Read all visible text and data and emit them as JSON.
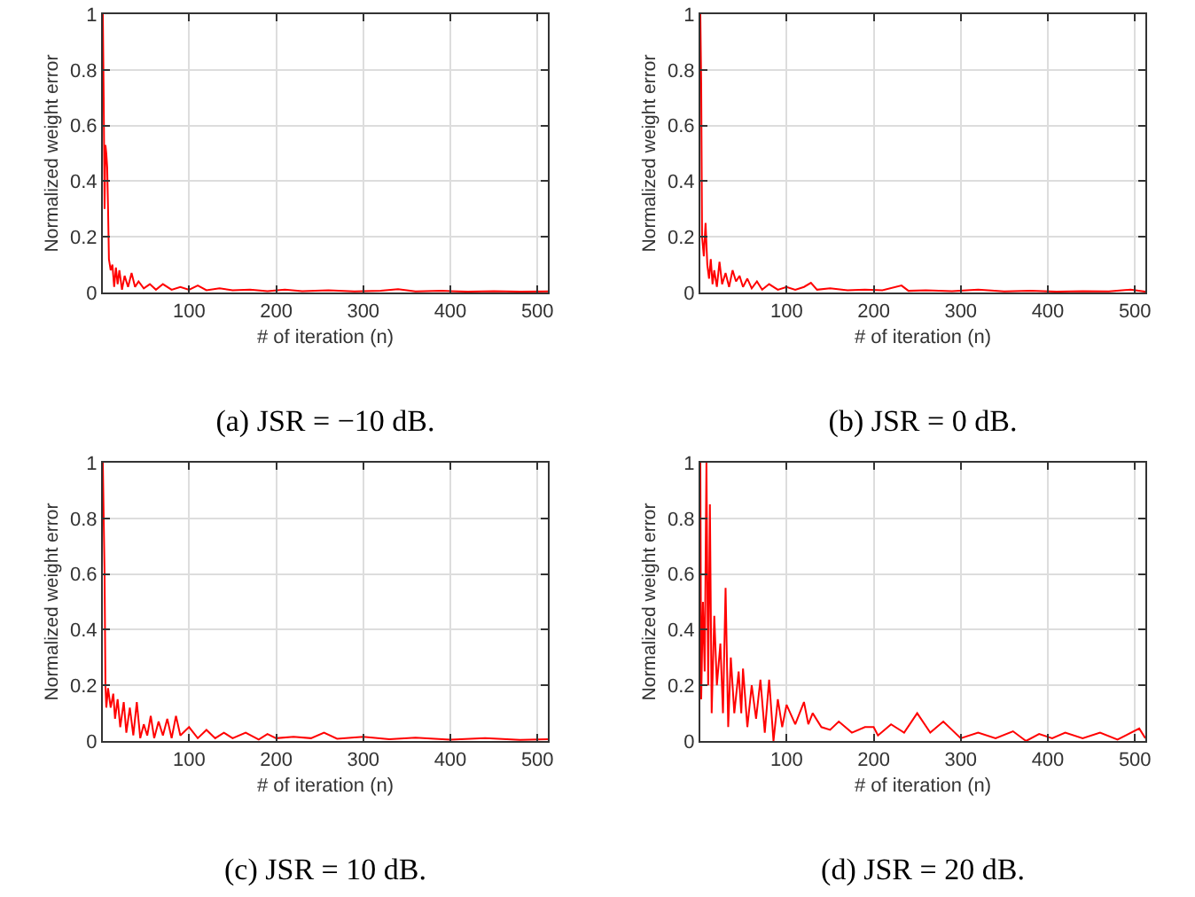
{
  "chart_data": [
    {
      "type": "line",
      "title": "(a) JSR = −10 dB.",
      "xlabel": "# of iteration (n)",
      "ylabel": "Normalized weight error",
      "color": "#ff0000",
      "xlim": [
        1,
        512
      ],
      "ylim": [
        0,
        1
      ],
      "xticks": [
        100,
        200,
        300,
        400,
        500
      ],
      "yticks": [
        0,
        0.2,
        0.4,
        0.6,
        0.8,
        1
      ],
      "grid": true,
      "x": [
        1,
        2,
        3,
        4,
        5,
        6,
        7,
        8,
        10,
        12,
        14,
        16,
        18,
        20,
        23,
        26,
        30,
        34,
        38,
        42,
        48,
        55,
        62,
        70,
        80,
        90,
        100,
        110,
        120,
        135,
        150,
        170,
        190,
        210,
        230,
        260,
        290,
        320,
        340,
        360,
        390,
        420,
        450,
        480,
        512
      ],
      "values": [
        1,
        0.7,
        0.3,
        0.53,
        0.5,
        0.45,
        0.3,
        0.12,
        0.08,
        0.1,
        0.02,
        0.09,
        0.03,
        0.08,
        0.01,
        0.06,
        0.02,
        0.07,
        0.02,
        0.04,
        0.015,
        0.03,
        0.01,
        0.03,
        0.01,
        0.02,
        0.01,
        0.025,
        0.008,
        0.015,
        0.008,
        0.01,
        0.005,
        0.01,
        0.005,
        0.008,
        0.004,
        0.006,
        0.012,
        0.004,
        0.006,
        0.003,
        0.005,
        0.003,
        0.004
      ]
    },
    {
      "type": "line",
      "title": "(b) JSR = 0 dB.",
      "xlabel": "# of iteration (n)",
      "ylabel": "Normalized weight error",
      "color": "#ff0000",
      "xlim": [
        1,
        512
      ],
      "ylim": [
        0,
        1
      ],
      "xticks": [
        100,
        200,
        300,
        400,
        500
      ],
      "yticks": [
        0,
        0.2,
        0.4,
        0.6,
        0.8,
        1
      ],
      "grid": true,
      "x": [
        1,
        2,
        3,
        5,
        7,
        9,
        11,
        13,
        15,
        17,
        20,
        23,
        26,
        30,
        34,
        38,
        42,
        46,
        50,
        55,
        60,
        66,
        72,
        80,
        90,
        100,
        110,
        120,
        128,
        135,
        150,
        170,
        190,
        210,
        232,
        240,
        260,
        290,
        320,
        350,
        380,
        410,
        440,
        470,
        495,
        512
      ],
      "values": [
        1,
        0.75,
        0.2,
        0.13,
        0.25,
        0.1,
        0.05,
        0.12,
        0.03,
        0.08,
        0.02,
        0.11,
        0.03,
        0.07,
        0.02,
        0.08,
        0.04,
        0.06,
        0.02,
        0.05,
        0.015,
        0.04,
        0.01,
        0.03,
        0.01,
        0.02,
        0.01,
        0.02,
        0.035,
        0.01,
        0.015,
        0.008,
        0.01,
        0.008,
        0.025,
        0.006,
        0.008,
        0.005,
        0.01,
        0.004,
        0.006,
        0.003,
        0.005,
        0.004,
        0.01,
        0.003
      ]
    },
    {
      "type": "line",
      "title": "(c) JSR = 10 dB.",
      "xlabel": "# of iteration (n)",
      "ylabel": "Normalized weight error",
      "color": "#ff0000",
      "xlim": [
        1,
        512
      ],
      "ylim": [
        0,
        1
      ],
      "xticks": [
        100,
        200,
        300,
        400,
        500
      ],
      "yticks": [
        0,
        0.2,
        0.4,
        0.6,
        0.8,
        1
      ],
      "grid": true,
      "x": [
        1,
        2,
        3,
        4,
        5,
        7,
        10,
        13,
        15,
        18,
        21,
        25,
        28,
        32,
        36,
        40,
        44,
        48,
        52,
        56,
        60,
        65,
        70,
        75,
        80,
        85,
        90,
        100,
        110,
        120,
        130,
        140,
        150,
        165,
        180,
        190,
        200,
        220,
        240,
        255,
        270,
        300,
        330,
        360,
        400,
        440,
        480,
        512
      ],
      "values": [
        1,
        0.8,
        0.6,
        0.2,
        0.12,
        0.19,
        0.12,
        0.17,
        0.08,
        0.15,
        0.05,
        0.14,
        0.03,
        0.12,
        0.02,
        0.14,
        0.01,
        0.06,
        0.02,
        0.09,
        0.01,
        0.07,
        0.02,
        0.08,
        0.01,
        0.09,
        0.02,
        0.05,
        0.01,
        0.04,
        0.01,
        0.03,
        0.01,
        0.03,
        0.005,
        0.025,
        0.01,
        0.015,
        0.01,
        0.03,
        0.008,
        0.015,
        0.006,
        0.012,
        0.005,
        0.01,
        0.004,
        0.006
      ]
    },
    {
      "type": "line",
      "title": "(d) JSR = 20 dB.",
      "xlabel": "# of iteration (n)",
      "ylabel": "Normalized weight error",
      "color": "#ff0000",
      "xlim": [
        1,
        512
      ],
      "ylim": [
        0,
        1
      ],
      "xticks": [
        100,
        200,
        300,
        400,
        500
      ],
      "yticks": [
        0,
        0.2,
        0.4,
        0.6,
        0.8,
        1
      ],
      "grid": true,
      "x": [
        1,
        2,
        4,
        6,
        8,
        10,
        12,
        14,
        17,
        20,
        24,
        27,
        30,
        33,
        36,
        40,
        45,
        48,
        50,
        55,
        60,
        65,
        70,
        75,
        80,
        85,
        90,
        95,
        100,
        110,
        120,
        125,
        130,
        140,
        150,
        160,
        175,
        190,
        200,
        205,
        220,
        235,
        250,
        265,
        280,
        300,
        320,
        340,
        360,
        375,
        390,
        405,
        420,
        440,
        460,
        480,
        505,
        512
      ],
      "values": [
        1,
        0.15,
        0.5,
        0.25,
        1,
        0.2,
        0.85,
        0.1,
        0.45,
        0.2,
        0.35,
        0.1,
        0.55,
        0.05,
        0.3,
        0.1,
        0.25,
        0.1,
        0.26,
        0.05,
        0.2,
        0.08,
        0.22,
        0.03,
        0.22,
        0.0,
        0.15,
        0.05,
        0.13,
        0.06,
        0.14,
        0.06,
        0.1,
        0.05,
        0.04,
        0.07,
        0.03,
        0.05,
        0.05,
        0.02,
        0.06,
        0.03,
        0.1,
        0.03,
        0.07,
        0.01,
        0.03,
        0.01,
        0.035,
        0.0,
        0.025,
        0.01,
        0.03,
        0.01,
        0.03,
        0.005,
        0.045,
        0.01
      ]
    }
  ]
}
